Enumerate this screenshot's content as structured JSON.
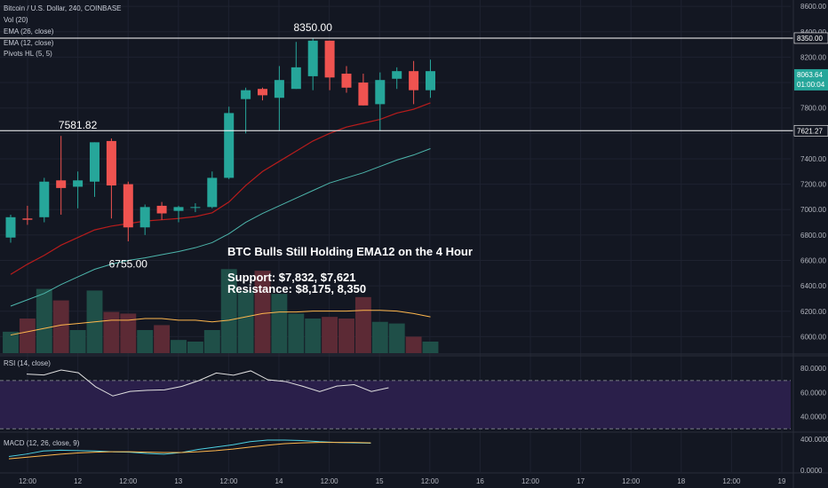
{
  "header": {
    "symbol": "Bitcoin / U.S. Dollar, 240, COINBASE",
    "indicators": [
      "Vol (20)",
      "EMA (26, close)",
      "EMA (12, close)",
      "Pivots HL (5, 5)"
    ]
  },
  "annotation": {
    "title": "BTC Bulls Still Holding EMA12 on the 4 Hour",
    "support": "Support: $7,832, $7,621",
    "resistance": "Resistance: $8,175, 8,350"
  },
  "colors": {
    "background": "#131722",
    "up": "#26a69a",
    "down": "#ef5350",
    "ema12": "#b71c1c",
    "ema26": "#4db6ac",
    "vol_ma": "#ffb74d",
    "rsi": "#e0e0e0",
    "rsi_band": "#2a1f4a",
    "macd": "#4dd0e1",
    "signal": "#ffb74d"
  },
  "chart_data": [
    {
      "type": "candlestick",
      "title": "Bitcoin / U.S. Dollar, 240, COINBASE",
      "y_ticks": [
        6000,
        6200,
        6400,
        6600,
        6800,
        7000,
        7200,
        7400,
        7600,
        7800,
        8000,
        8200,
        8400,
        8600
      ],
      "y_tick_labels": [
        "6000.00",
        "6200.00",
        "6400.00",
        "6600.00",
        "6800.00",
        "7000.00",
        "7200.00",
        "7400.00",
        "7600.00",
        "7800.00",
        "8000.00",
        "8200.00",
        "8400.00",
        "8600.00"
      ],
      "ylim": [
        5870,
        8650
      ],
      "x_tick_labels": [
        "12:00",
        "12",
        "12:00",
        "13",
        "12:00",
        "14",
        "12:00",
        "15",
        "12:00",
        "16",
        "12:00",
        "17",
        "12:00",
        "18",
        "12:00",
        "19"
      ],
      "candles": [
        {
          "o": 6780,
          "h": 6960,
          "l": 6740,
          "c": 6940
        },
        {
          "o": 6930,
          "h": 7030,
          "l": 6880,
          "c": 6920
        },
        {
          "o": 6940,
          "h": 7250,
          "l": 6900,
          "c": 7220
        },
        {
          "o": 7230,
          "h": 7580,
          "l": 6960,
          "c": 7170
        },
        {
          "o": 7180,
          "h": 7300,
          "l": 7010,
          "c": 7230
        },
        {
          "o": 7220,
          "h": 7530,
          "l": 7100,
          "c": 7530
        },
        {
          "o": 7540,
          "h": 7560,
          "l": 6930,
          "c": 7190
        },
        {
          "o": 7200,
          "h": 7220,
          "l": 6750,
          "c": 6860
        },
        {
          "o": 6860,
          "h": 7040,
          "l": 6800,
          "c": 7020
        },
        {
          "o": 7030,
          "h": 7060,
          "l": 6920,
          "c": 6970
        },
        {
          "o": 6990,
          "h": 7030,
          "l": 6900,
          "c": 7020
        },
        {
          "o": 7020,
          "h": 7050,
          "l": 6980,
          "c": 7020
        },
        {
          "o": 7020,
          "h": 7300,
          "l": 7010,
          "c": 7250
        },
        {
          "o": 7250,
          "h": 7810,
          "l": 7240,
          "c": 7760
        },
        {
          "o": 7870,
          "h": 7960,
          "l": 7600,
          "c": 7940
        },
        {
          "o": 7950,
          "h": 7960,
          "l": 7860,
          "c": 7900
        },
        {
          "o": 7880,
          "h": 8130,
          "l": 7620,
          "c": 8020
        },
        {
          "o": 7950,
          "h": 8320,
          "l": 7950,
          "c": 8120
        },
        {
          "o": 8050,
          "h": 8350,
          "l": 7940,
          "c": 8330
        },
        {
          "o": 8330,
          "h": 8330,
          "l": 7940,
          "c": 8040
        },
        {
          "o": 8070,
          "h": 8130,
          "l": 7920,
          "c": 7960
        },
        {
          "o": 8000,
          "h": 8070,
          "l": 7820,
          "c": 7820
        },
        {
          "o": 7830,
          "h": 8080,
          "l": 7620,
          "c": 8020
        },
        {
          "o": 8030,
          "h": 8120,
          "l": 7950,
          "c": 8090
        },
        {
          "o": 8090,
          "h": 8170,
          "l": 7830,
          "c": 7940
        },
        {
          "o": 7940,
          "h": 8180,
          "l": 7880,
          "c": 8090
        }
      ],
      "ema12": [
        6490,
        6570,
        6640,
        6720,
        6780,
        6840,
        6870,
        6890,
        6910,
        6920,
        6930,
        6945,
        6975,
        7060,
        7190,
        7300,
        7380,
        7460,
        7540,
        7600,
        7650,
        7680,
        7710,
        7760,
        7790,
        7840
      ],
      "ema26": [
        6240,
        6290,
        6340,
        6410,
        6470,
        6530,
        6570,
        6600,
        6620,
        6645,
        6670,
        6700,
        6740,
        6810,
        6900,
        6970,
        7030,
        7090,
        7150,
        7210,
        7250,
        7290,
        7340,
        7390,
        7430,
        7480
      ],
      "horizontal_lines": [
        8350.0,
        7621.27
      ],
      "price_labels": {
        "resistance_line": "8350.00",
        "support_line": "7621.27",
        "last_price": "8063.64",
        "countdown": "01:00:04"
      },
      "pivot_labels": [
        {
          "candle": 18,
          "price": 8350.0,
          "text": "8350.00",
          "position": "above"
        },
        {
          "candle": 4,
          "price": 7581.82,
          "text": "7581.82",
          "position": "above"
        },
        {
          "candle": 7,
          "price": 6755.0,
          "text": "6755.00",
          "position": "below"
        }
      ]
    },
    {
      "type": "bar",
      "title": "Vol (20)",
      "values": [
        1.3,
        2.1,
        3.9,
        3.2,
        1.4,
        3.8,
        2.5,
        2.4,
        1.4,
        1.7,
        0.8,
        0.7,
        1.4,
        5.1,
        3.8,
        5.0,
        3.6,
        2.4,
        2.1,
        2.2,
        2.1,
        3.4,
        1.9,
        1.8,
        1.0,
        0.7
      ],
      "directions": [
        "up",
        "down",
        "up",
        "down",
        "up",
        "up",
        "down",
        "down",
        "up",
        "down",
        "up",
        "up",
        "up",
        "up",
        "up",
        "down",
        "up",
        "up",
        "up",
        "down",
        "down",
        "down",
        "up",
        "up",
        "down",
        "up"
      ],
      "ma": [
        1.1,
        1.3,
        1.5,
        1.7,
        1.8,
        1.9,
        2.0,
        2.0,
        2.1,
        2.1,
        2.0,
        2.0,
        1.9,
        2.0,
        2.2,
        2.4,
        2.5,
        2.5,
        2.55,
        2.55,
        2.55,
        2.6,
        2.6,
        2.55,
        2.4,
        2.2
      ],
      "ylim": [
        0,
        5.6
      ]
    },
    {
      "type": "line",
      "title": "RSI (14, close)",
      "values": [
        75.3,
        74.6,
        78.7,
        76.4,
        64.8,
        57.2,
        61.0,
        61.9,
        62.3,
        65.1,
        70.0,
        76.2,
        74.4,
        78.0,
        70.6,
        69.2,
        65.3,
        60.8,
        65.4,
        66.6,
        60.9,
        64.0
      ],
      "y_ticks": [
        40,
        60,
        80
      ],
      "y_tick_labels": [
        "40.0000",
        "60.0000",
        "80.0000"
      ],
      "ylim": [
        28,
        89
      ],
      "bands": [
        70,
        30
      ]
    },
    {
      "type": "line",
      "title": "MACD (12, 26, close, 9)",
      "series": [
        {
          "name": "MACD",
          "values": [
            180,
            210,
            250,
            260,
            255,
            250,
            240,
            235,
            220,
            210,
            230,
            270,
            300,
            330,
            370,
            390,
            390,
            385,
            370,
            360,
            355,
            350
          ]
        },
        {
          "name": "Signal",
          "values": [
            150,
            170,
            190,
            210,
            225,
            235,
            240,
            240,
            235,
            230,
            230,
            240,
            255,
            275,
            300,
            325,
            345,
            355,
            360,
            360,
            360,
            355
          ]
        }
      ],
      "y_ticks": [
        0,
        400
      ],
      "y_tick_labels": [
        "0.0000",
        "400.0000"
      ],
      "ylim": [
        -20,
        470
      ]
    }
  ]
}
